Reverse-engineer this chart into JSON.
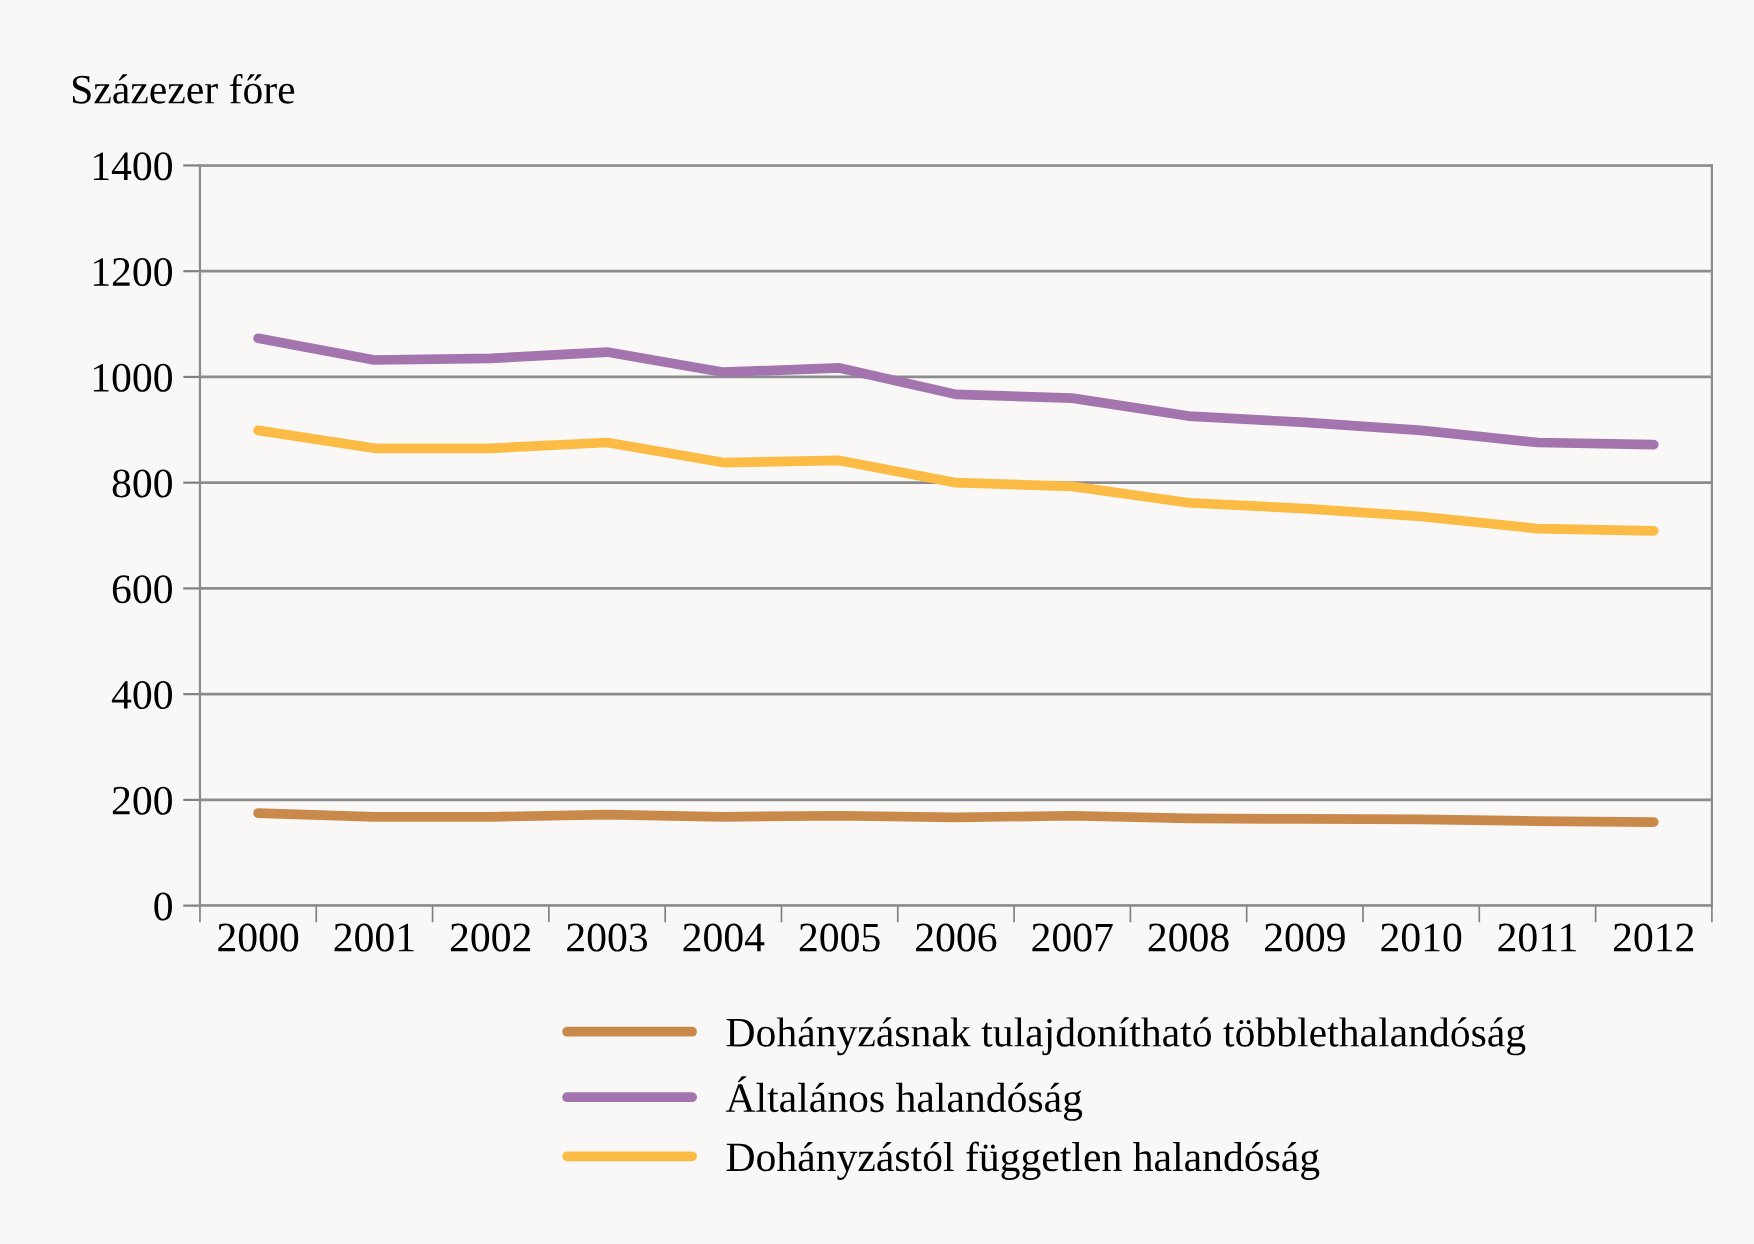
{
  "chart_data": {
    "type": "line",
    "ylabel": "Százezer főre",
    "categories": [
      "2000",
      "2001",
      "2002",
      "2003",
      "2004",
      "2005",
      "2006",
      "2007",
      "2008",
      "2009",
      "2010",
      "2011",
      "2012"
    ],
    "series": [
      {
        "name": "Dohányzásnak tulajdonítható többlethalandóság",
        "color": "#c8894a",
        "values": [
          175,
          168,
          168,
          172,
          168,
          170,
          167,
          170,
          165,
          164,
          163,
          160,
          158
        ]
      },
      {
        "name": "Általános halandóság",
        "color": "#a374ae",
        "values": [
          1073,
          1032,
          1035,
          1047,
          1009,
          1017,
          967,
          960,
          926,
          914,
          899,
          876,
          872
        ]
      },
      {
        "name": "Dohányzástól független halandóság",
        "color": "#fbbb44",
        "values": [
          899,
          865,
          865,
          876,
          838,
          842,
          800,
          793,
          762,
          751,
          736,
          713,
          709
        ]
      }
    ],
    "ylim": [
      0,
      1400
    ],
    "yticks": [
      0,
      200,
      400,
      600,
      800,
      1000,
      1200,
      1400
    ],
    "grid": "y",
    "legend": "bottom",
    "marker": "none",
    "line_style": "solid"
  }
}
